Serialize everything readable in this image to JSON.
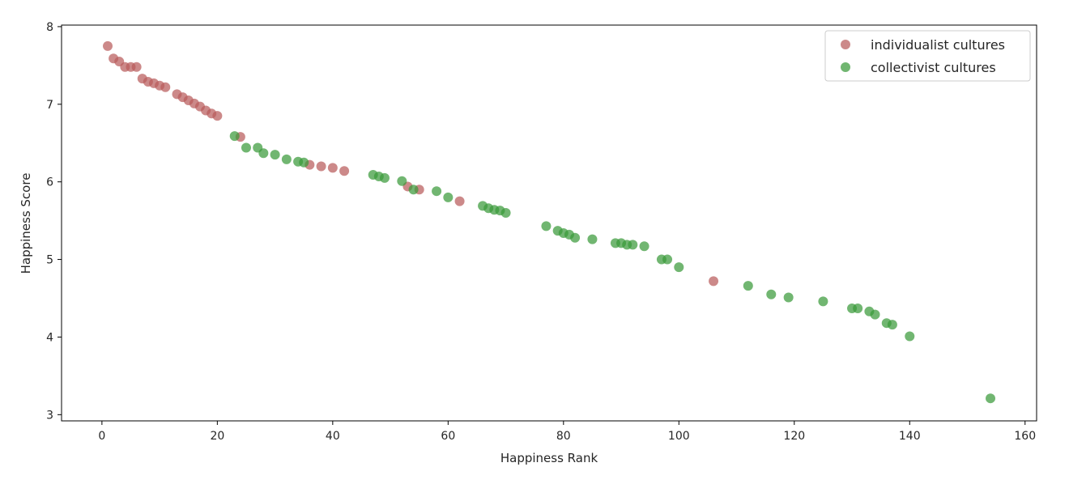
{
  "chart_data": {
    "type": "scatter",
    "xlabel": "Happiness Rank",
    "ylabel": "Happiness Score",
    "xlim": [
      -7,
      162
    ],
    "ylim": [
      2.92,
      8.02
    ],
    "xticks": [
      0,
      20,
      40,
      60,
      80,
      100,
      120,
      140,
      160
    ],
    "yticks": [
      3,
      4,
      5,
      6,
      7,
      8
    ],
    "grid": false,
    "legend_position": "top-right",
    "series": [
      {
        "name": "individualist cultures",
        "color": "#b85c5c",
        "points": [
          [
            1,
            7.75
          ],
          [
            2,
            7.59
          ],
          [
            3,
            7.55
          ],
          [
            4,
            7.48
          ],
          [
            5,
            7.48
          ],
          [
            6,
            7.48
          ],
          [
            7,
            7.33
          ],
          [
            8,
            7.29
          ],
          [
            9,
            7.27
          ],
          [
            10,
            7.24
          ],
          [
            11,
            7.22
          ],
          [
            13,
            7.13
          ],
          [
            14,
            7.09
          ],
          [
            15,
            7.05
          ],
          [
            16,
            7.01
          ],
          [
            17,
            6.97
          ],
          [
            18,
            6.92
          ],
          [
            19,
            6.88
          ],
          [
            20,
            6.85
          ],
          [
            24,
            6.58
          ],
          [
            36,
            6.22
          ],
          [
            38,
            6.2
          ],
          [
            40,
            6.18
          ],
          [
            42,
            6.14
          ],
          [
            53,
            5.94
          ],
          [
            55,
            5.9
          ],
          [
            62,
            5.75
          ],
          [
            106,
            4.72
          ]
        ]
      },
      {
        "name": "collectivist cultures",
        "color": "#3a9a3a",
        "points": [
          [
            23,
            6.59
          ],
          [
            25,
            6.44
          ],
          [
            27,
            6.44
          ],
          [
            28,
            6.37
          ],
          [
            30,
            6.35
          ],
          [
            32,
            6.29
          ],
          [
            34,
            6.26
          ],
          [
            35,
            6.25
          ],
          [
            47,
            6.09
          ],
          [
            48,
            6.07
          ],
          [
            49,
            6.05
          ],
          [
            52,
            6.01
          ],
          [
            54,
            5.9
          ],
          [
            58,
            5.88
          ],
          [
            60,
            5.8
          ],
          [
            66,
            5.69
          ],
          [
            67,
            5.66
          ],
          [
            68,
            5.64
          ],
          [
            69,
            5.63
          ],
          [
            70,
            5.6
          ],
          [
            77,
            5.43
          ],
          [
            79,
            5.37
          ],
          [
            80,
            5.34
          ],
          [
            81,
            5.32
          ],
          [
            82,
            5.28
          ],
          [
            85,
            5.26
          ],
          [
            89,
            5.21
          ],
          [
            90,
            5.21
          ],
          [
            91,
            5.19
          ],
          [
            92,
            5.19
          ],
          [
            94,
            5.17
          ],
          [
            97,
            5.0
          ],
          [
            98,
            5.0
          ],
          [
            100,
            4.9
          ],
          [
            112,
            4.66
          ],
          [
            116,
            4.55
          ],
          [
            119,
            4.51
          ],
          [
            125,
            4.46
          ],
          [
            130,
            4.37
          ],
          [
            131,
            4.37
          ],
          [
            133,
            4.33
          ],
          [
            134,
            4.29
          ],
          [
            136,
            4.18
          ],
          [
            137,
            4.16
          ],
          [
            140,
            4.01
          ],
          [
            154,
            3.21
          ]
        ]
      }
    ]
  }
}
